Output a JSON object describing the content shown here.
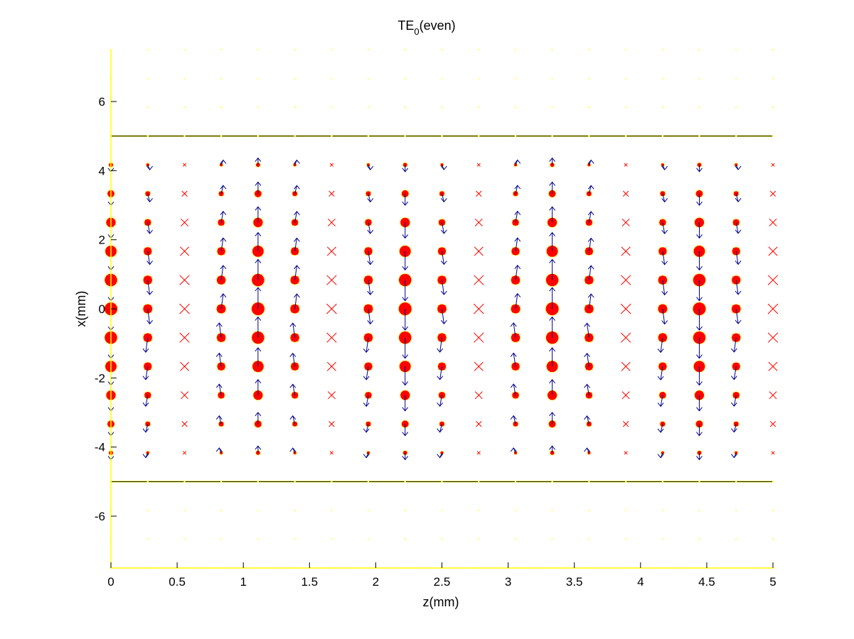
{
  "chart_data": {
    "type": "scatter",
    "title_main": "TE",
    "title_sub": "0",
    "title_suffix": "(even)",
    "xlabel": "z(mm)",
    "ylabel": "x(mm)",
    "xlim": [
      0,
      5
    ],
    "ylim": [
      -7.5,
      7.5
    ],
    "xticks": [
      "0",
      "0.5",
      "1",
      "1.5",
      "2",
      "2.5",
      "3",
      "3.5",
      "4",
      "4.5",
      "5"
    ],
    "yticks": [
      "-6",
      "-4",
      "-2",
      "0",
      "2",
      "4",
      "6"
    ],
    "grid": false,
    "guide_lines_x": [
      -5,
      5
    ],
    "grid_z": [
      0,
      0.278,
      0.556,
      0.833,
      1.111,
      1.389,
      1.667,
      1.944,
      2.222,
      2.5,
      2.778,
      3.056,
      3.333,
      3.611,
      3.889,
      4.167,
      4.444,
      4.722,
      5
    ],
    "grid_x": [
      -7.5,
      -6.667,
      -5.833,
      -5,
      -4.167,
      -3.333,
      -2.5,
      -1.667,
      -0.833,
      0,
      0.833,
      1.667,
      2.5,
      3.333,
      4.167,
      5,
      5.833,
      6.667,
      7.5
    ],
    "field_model": {
      "period_z_mm": 2.22,
      "core_half_width_mm": 5,
      "decay_per_mm": 1.6
    },
    "colors": {
      "magnitude_marker": "#ff0000",
      "arrow": "#00008b",
      "cross_marker": "#ff0000",
      "guide_line": "#000000",
      "axis": "#ffff00"
    }
  }
}
